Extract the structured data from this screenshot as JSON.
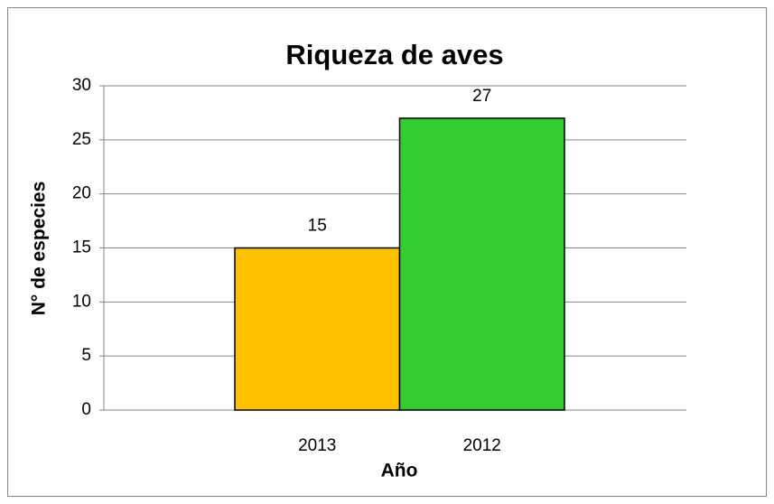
{
  "chart_data": {
    "type": "bar",
    "title": "Riqueza de aves",
    "x_label": "Año",
    "y_label": "N° de especies",
    "categories": [
      "2013",
      "2012"
    ],
    "values": [
      15,
      27
    ],
    "colors": [
      "#ffc000",
      "#33cc33"
    ],
    "ylim": [
      0,
      30
    ],
    "yticks": [
      0,
      5,
      10,
      15,
      20,
      25,
      30
    ],
    "grid": true
  }
}
